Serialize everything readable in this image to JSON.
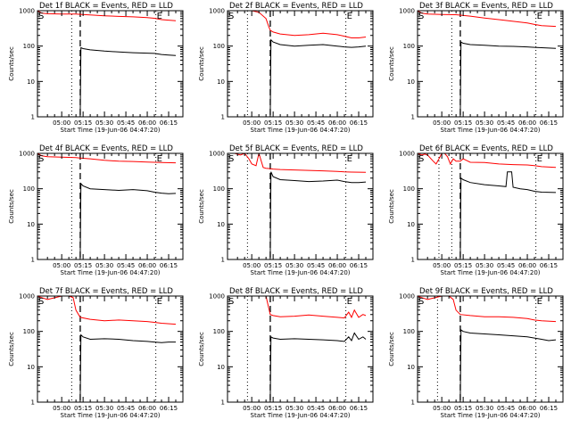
{
  "chart_data": [
    {
      "type": "line",
      "title": "Det 1f BLACK = Events, RED = LLD",
      "xlabel": "Start Time (19-Jun-06 04:47:20)",
      "ylabel": "Counts/sec",
      "yscale": "log",
      "ylim": [
        1,
        1000
      ],
      "xlim": [
        -17,
        85
      ],
      "yticks": [
        "1",
        "10",
        "100",
        "1000"
      ],
      "xticks": [
        "05:00",
        "05:15",
        "05:30",
        "05:45",
        "06:00",
        "06:15"
      ],
      "xtick_values": [
        0,
        15,
        30,
        45,
        60,
        75
      ],
      "markers": {
        "S": -17,
        "E": 66
      },
      "dotted_lines": [
        7,
        66
      ],
      "dashed_line": 13,
      "grid": false,
      "series": [
        {
          "color": "#000000",
          "x": [
            13,
            13.5,
            15,
            20,
            30,
            40,
            50,
            60,
            65,
            70,
            75,
            80
          ],
          "y": [
            1,
            90,
            85,
            78,
            72,
            68,
            65,
            63,
            62,
            58,
            56,
            54
          ]
        },
        {
          "color": "#ff0000",
          "x": [
            -17,
            -14,
            -10,
            0,
            10,
            13,
            20,
            30,
            40,
            50,
            60,
            65,
            70,
            80
          ],
          "y": [
            1000,
            850,
            820,
            800,
            800,
            790,
            760,
            720,
            690,
            670,
            640,
            610,
            560,
            520
          ]
        }
      ]
    },
    {
      "type": "line",
      "title": "Det 2f BLACK = Events, RED = LLD",
      "xlabel": "Start Time (19-Jun-06 04:47:20)",
      "ylabel": "Counts/sec",
      "yscale": "log",
      "ylim": [
        1,
        1000
      ],
      "xlim": [
        -17,
        85
      ],
      "yticks": [
        "1",
        "10",
        "100",
        "1000"
      ],
      "xticks": [
        "05:00",
        "05:15",
        "05:30",
        "05:45",
        "06:00",
        "06:15"
      ],
      "xtick_values": [
        0,
        15,
        30,
        45,
        60,
        75
      ],
      "markers": {
        "S": -17,
        "E": 66
      },
      "dotted_lines": [
        -3,
        66
      ],
      "dashed_line": 13,
      "grid": false,
      "series": [
        {
          "color": "#000000",
          "x": [
            13,
            13.5,
            15,
            20,
            30,
            40,
            50,
            60,
            65,
            70,
            75,
            80
          ],
          "y": [
            1,
            150,
            130,
            110,
            100,
            105,
            110,
            100,
            95,
            92,
            95,
            100
          ]
        },
        {
          "color": "#ff0000",
          "x": [
            -17,
            -10,
            0,
            5,
            10,
            12,
            13,
            15,
            20,
            30,
            40,
            50,
            60,
            65,
            70,
            75,
            80
          ],
          "y": [
            1000,
            1000,
            1000,
            900,
            600,
            350,
            280,
            250,
            220,
            200,
            210,
            230,
            210,
            190,
            170,
            170,
            180
          ]
        }
      ]
    },
    {
      "type": "line",
      "title": "Det 3f BLACK = Events, RED = LLD",
      "xlabel": "Start Time (19-Jun-06 04:47:20)",
      "ylabel": "Counts/sec",
      "yscale": "log",
      "ylim": [
        1,
        1000
      ],
      "xlim": [
        -17,
        85
      ],
      "yticks": [
        "1",
        "10",
        "100",
        "1000"
      ],
      "xticks": [
        "05:00",
        "05:15",
        "05:30",
        "05:45",
        "06:00",
        "06:15"
      ],
      "xtick_values": [
        0,
        15,
        30,
        45,
        60,
        75
      ],
      "markers": {
        "S": -17,
        "E": 66
      },
      "dotted_lines": [
        7,
        66
      ],
      "dashed_line": 13,
      "grid": false,
      "series": [
        {
          "color": "#000000",
          "x": [
            13,
            13.5,
            15,
            20,
            30,
            40,
            50,
            60,
            65,
            70,
            75,
            80
          ],
          "y": [
            1,
            130,
            120,
            110,
            105,
            100,
            98,
            95,
            92,
            90,
            88,
            86
          ]
        },
        {
          "color": "#ff0000",
          "x": [
            -17,
            -14,
            -10,
            0,
            10,
            13,
            20,
            30,
            40,
            50,
            60,
            65,
            70,
            80
          ],
          "y": [
            1000,
            850,
            800,
            780,
            770,
            750,
            700,
            620,
            560,
            500,
            450,
            410,
            380,
            360
          ]
        }
      ]
    },
    {
      "type": "line",
      "title": "Det 4f BLACK = Events, RED = LLD",
      "xlabel": "Start Time (19-Jun-06 04:47:20)",
      "ylabel": "Counts/sec",
      "yscale": "log",
      "ylim": [
        1,
        1000
      ],
      "xlim": [
        -17,
        85
      ],
      "yticks": [
        "1",
        "10",
        "100",
        "1000"
      ],
      "xticks": [
        "05:00",
        "05:15",
        "05:30",
        "05:45",
        "06:00",
        "06:15"
      ],
      "xtick_values": [
        0,
        15,
        30,
        45,
        60,
        75
      ],
      "markers": {
        "S": -17,
        "E": 66
      },
      "dotted_lines": [
        7,
        66
      ],
      "dashed_line": 13,
      "grid": false,
      "series": [
        {
          "color": "#000000",
          "x": [
            13,
            13.5,
            15,
            20,
            30,
            40,
            50,
            60,
            65,
            70,
            75,
            80
          ],
          "y": [
            1,
            140,
            120,
            100,
            95,
            90,
            95,
            88,
            80,
            75,
            72,
            74
          ]
        },
        {
          "color": "#ff0000",
          "x": [
            -17,
            -14,
            -10,
            0,
            10,
            13,
            20,
            30,
            40,
            50,
            60,
            65,
            70,
            80
          ],
          "y": [
            1000,
            850,
            800,
            780,
            760,
            740,
            700,
            640,
            600,
            590,
            570,
            560,
            550,
            540
          ]
        }
      ]
    },
    {
      "type": "line",
      "title": "Det 5f BLACK = Events, RED = LLD",
      "xlabel": "Start Time (19-Jun-06 04:47:20)",
      "ylabel": "Counts/sec",
      "yscale": "log",
      "ylim": [
        1,
        1000
      ],
      "xlim": [
        -17,
        85
      ],
      "yticks": [
        "1",
        "10",
        "100",
        "1000"
      ],
      "xticks": [
        "05:00",
        "05:15",
        "05:30",
        "05:45",
        "06:00",
        "06:15"
      ],
      "xtick_values": [
        0,
        15,
        30,
        45,
        60,
        75
      ],
      "markers": {
        "S": -17,
        "E": 66
      },
      "dotted_lines": [
        -3,
        66
      ],
      "dashed_line": 13,
      "grid": false,
      "series": [
        {
          "color": "#000000",
          "x": [
            13,
            13.5,
            15,
            20,
            30,
            40,
            50,
            60,
            65,
            70,
            75,
            80
          ],
          "y": [
            1,
            300,
            220,
            180,
            170,
            160,
            165,
            175,
            160,
            150,
            150,
            155
          ]
        },
        {
          "color": "#ff0000",
          "x": [
            -17,
            -12,
            -8,
            -5,
            -2,
            0,
            3,
            5,
            8,
            10,
            13,
            15,
            20,
            30,
            40,
            50,
            60,
            65,
            70,
            80
          ],
          "y": [
            1000,
            1000,
            900,
            1000,
            700,
            500,
            450,
            1000,
            400,
            380,
            370,
            360,
            350,
            340,
            330,
            320,
            310,
            300,
            295,
            290
          ]
        }
      ]
    },
    {
      "type": "line",
      "title": "Det 6f BLACK = Events, RED = LLD",
      "xlabel": "Start Time (19-Jun-06 04:47:20)",
      "ylabel": "Counts/sec",
      "yscale": "log",
      "ylim": [
        1,
        1000
      ],
      "xlim": [
        -17,
        85
      ],
      "yticks": [
        "1",
        "10",
        "100",
        "1000"
      ],
      "xticks": [
        "05:00",
        "05:15",
        "05:30",
        "05:45",
        "06:00",
        "06:15"
      ],
      "xtick_values": [
        0,
        15,
        30,
        45,
        60,
        75
      ],
      "markers": {
        "S": -17,
        "E": 66
      },
      "dotted_lines": [
        -2,
        7,
        66
      ],
      "dashed_line": 13,
      "grid": false,
      "series": [
        {
          "color": "#000000",
          "x": [
            13,
            13.5,
            15,
            20,
            30,
            40,
            45,
            46,
            49,
            50,
            55,
            60,
            65,
            70,
            80
          ],
          "y": [
            1,
            200,
            180,
            150,
            130,
            120,
            115,
            300,
            300,
            110,
            100,
            95,
            85,
            80,
            78
          ]
        },
        {
          "color": "#ff0000",
          "x": [
            -17,
            -14,
            -12,
            -10,
            -6,
            -4,
            -2,
            0,
            2,
            4,
            6,
            8,
            10,
            13,
            15,
            20,
            30,
            40,
            50,
            60,
            65,
            70,
            80
          ],
          "y": [
            1000,
            900,
            950,
            900,
            600,
            500,
            700,
            1000,
            1000,
            800,
            500,
            700,
            600,
            600,
            700,
            560,
            550,
            500,
            480,
            470,
            450,
            420,
            400
          ]
        }
      ]
    },
    {
      "type": "line",
      "title": "Det 7f BLACK = Events, RED = LLD",
      "xlabel": "Start Time (19-Jun-06 04:47:20)",
      "ylabel": "Counts/sec",
      "yscale": "log",
      "ylim": [
        1,
        1000
      ],
      "xlim": [
        -17,
        85
      ],
      "yticks": [
        "1",
        "10",
        "100",
        "1000"
      ],
      "xticks": [
        "05:00",
        "05:15",
        "05:30",
        "05:45",
        "06:00",
        "06:15"
      ],
      "xtick_values": [
        0,
        15,
        30,
        45,
        60,
        75
      ],
      "markers": {
        "S": -17,
        "E": 66
      },
      "dotted_lines": [
        7,
        66
      ],
      "dashed_line": 13,
      "grid": false,
      "series": [
        {
          "color": "#000000",
          "x": [
            13,
            13.5,
            15,
            20,
            30,
            40,
            50,
            60,
            65,
            70,
            75,
            80
          ],
          "y": [
            1,
            80,
            70,
            60,
            62,
            60,
            55,
            52,
            50,
            48,
            50,
            50
          ]
        },
        {
          "color": "#ff0000",
          "x": [
            -17,
            -14,
            -10,
            0,
            5,
            8,
            10,
            13,
            20,
            30,
            40,
            50,
            60,
            65,
            70,
            80
          ],
          "y": [
            1000,
            900,
            800,
            1000,
            1000,
            900,
            400,
            250,
            220,
            200,
            210,
            200,
            190,
            180,
            170,
            160
          ]
        }
      ]
    },
    {
      "type": "line",
      "title": "Det 8f BLACK = Events, RED = LLD",
      "xlabel": "Start Time (19-Jun-06 04:47:20)",
      "ylabel": "Counts/sec",
      "yscale": "log",
      "ylim": [
        1,
        1000
      ],
      "xlim": [
        -17,
        85
      ],
      "yticks": [
        "1",
        "10",
        "100",
        "1000"
      ],
      "xticks": [
        "05:00",
        "05:15",
        "05:30",
        "05:45",
        "06:00",
        "06:15"
      ],
      "xtick_values": [
        0,
        15,
        30,
        45,
        60,
        75
      ],
      "markers": {
        "S": -17,
        "E": 66
      },
      "dotted_lines": [
        -3,
        66
      ],
      "dashed_line": 13,
      "grid": false,
      "series": [
        {
          "color": "#000000",
          "x": [
            13,
            13.5,
            15,
            20,
            30,
            40,
            50,
            60,
            65,
            68,
            70,
            72,
            75,
            78,
            80
          ],
          "y": [
            1,
            70,
            65,
            60,
            62,
            60,
            58,
            55,
            52,
            70,
            55,
            90,
            60,
            70,
            60
          ]
        },
        {
          "color": "#ff0000",
          "x": [
            -17,
            -10,
            0,
            5,
            8,
            10,
            13,
            15,
            20,
            30,
            40,
            50,
            60,
            65,
            68,
            70,
            72,
            75,
            78,
            80
          ],
          "y": [
            1000,
            1000,
            1000,
            1000,
            1000,
            1000,
            300,
            280,
            260,
            270,
            290,
            270,
            250,
            240,
            350,
            250,
            400,
            250,
            300,
            280
          ]
        }
      ]
    },
    {
      "type": "line",
      "title": "Det 9f BLACK = Events, RED = LLD",
      "xlabel": "Start Time (19-Jun-06 04:47:20)",
      "ylabel": "Counts/sec",
      "yscale": "log",
      "ylim": [
        1,
        1000
      ],
      "xlim": [
        -17,
        85
      ],
      "yticks": [
        "1",
        "10",
        "100",
        "1000"
      ],
      "xticks": [
        "05:00",
        "05:15",
        "05:30",
        "05:45",
        "06:00",
        "06:15"
      ],
      "xtick_values": [
        0,
        15,
        30,
        45,
        60,
        75
      ],
      "markers": {
        "S": -17,
        "E": 66
      },
      "dotted_lines": [
        -3,
        66
      ],
      "dashed_line": 13,
      "grid": false,
      "series": [
        {
          "color": "#000000",
          "x": [
            13,
            13.5,
            15,
            20,
            30,
            40,
            50,
            60,
            65,
            70,
            75,
            80
          ],
          "y": [
            1,
            110,
            100,
            90,
            85,
            80,
            75,
            70,
            65,
            60,
            55,
            58
          ]
        },
        {
          "color": "#ff0000",
          "x": [
            -17,
            -14,
            -10,
            0,
            5,
            8,
            10,
            13,
            20,
            30,
            40,
            50,
            60,
            65,
            70,
            80
          ],
          "y": [
            1000,
            900,
            800,
            1000,
            1000,
            800,
            400,
            300,
            280,
            260,
            260,
            250,
            230,
            210,
            200,
            190
          ]
        }
      ]
    }
  ]
}
